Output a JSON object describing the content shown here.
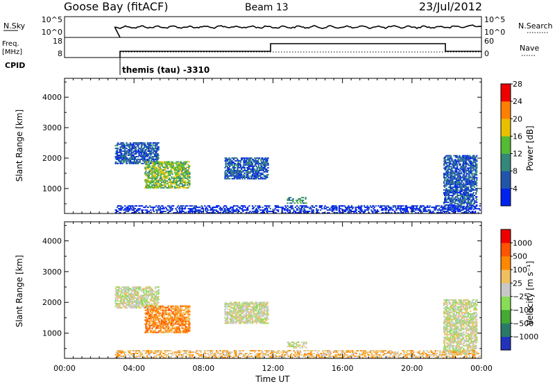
{
  "header": {
    "station": "Goose Bay (fitACF)",
    "beam": "Beam 13",
    "date": "23/Jul/2012"
  },
  "top_panels": {
    "nsky_label": "N.Sky",
    "nsky_ticks": [
      "10^5",
      "10^0"
    ],
    "nsearch_label": "N.Search",
    "nsearch_ticks": [
      "10^5",
      "10^0"
    ],
    "freq_label_line1": "Freq.",
    "freq_label_line2": "[MHz]",
    "freq_ticks": [
      "18",
      "8"
    ],
    "nave_label": "Nave",
    "nave_ticks": [
      "60",
      "0"
    ],
    "cpid_label": "CPID",
    "cpid_text": "themis (tau) -3310"
  },
  "chart_data": [
    {
      "type": "heatmap",
      "name": "power-panel",
      "ylabel": "Slant Range [km]",
      "yticks": [
        1000,
        2000,
        3000,
        4000
      ],
      "ylim": [
        180,
        4620
      ],
      "x_ticks": [
        "00:00",
        "04:00",
        "08:00",
        "12:00",
        "16:00",
        "20:00",
        "00:00"
      ],
      "xlim_hours": [
        0,
        24
      ],
      "colorbar": {
        "label": "Power [dB]",
        "ticks": [
          "4",
          "8",
          "12",
          "16",
          "20",
          "24",
          "28"
        ],
        "colors": [
          "#0022ee",
          "#2255aa",
          "#33887a",
          "#55bb33",
          "#e8c000",
          "#ff8000",
          "#ee0000"
        ]
      },
      "echo_regions": [
        {
          "t0": 2.9,
          "t1": 5.4,
          "r0": 1800,
          "r1": 2500,
          "level": 1
        },
        {
          "t0": 4.6,
          "t1": 7.2,
          "r0": 1000,
          "r1": 1900,
          "level": 3
        },
        {
          "t0": 9.2,
          "t1": 11.7,
          "r0": 1300,
          "r1": 2000,
          "level": 1
        },
        {
          "t0": 12.8,
          "t1": 13.9,
          "r0": 500,
          "r1": 700,
          "level": 2
        },
        {
          "t0": 21.8,
          "t1": 23.7,
          "r0": 300,
          "r1": 2100,
          "level": 1
        },
        {
          "t0": 2.9,
          "t1": 23.9,
          "r0": 180,
          "r1": 420,
          "level": 0
        }
      ]
    },
    {
      "type": "heatmap",
      "name": "velocity-panel",
      "ylabel": "Slant Range [km]",
      "xlabel": "Time UT",
      "yticks": [
        1000,
        2000,
        3000,
        4000
      ],
      "ylim": [
        180,
        4620
      ],
      "x_ticks": [
        "00:00",
        "04:00",
        "08:00",
        "12:00",
        "16:00",
        "20:00",
        "00:00"
      ],
      "xlim_hours": [
        0,
        24
      ],
      "colorbar": {
        "label": "Velocity [m s⁻¹]",
        "ticks": [
          "1000",
          "500",
          "100",
          "25",
          "−25",
          "−100",
          "−500",
          "−1000"
        ],
        "colors": [
          "#2233bb",
          "#2a7a6a",
          "#44aa33",
          "#88dd55",
          "#c8c8c8",
          "#f0c060",
          "#ff8800",
          "#ff5500",
          "#ee0000"
        ]
      },
      "echo_regions": [
        {
          "t0": 2.9,
          "t1": 5.4,
          "r0": 1800,
          "r1": 2500,
          "level": 4
        },
        {
          "t0": 4.6,
          "t1": 7.2,
          "r0": 1000,
          "r1": 1900,
          "level": 6
        },
        {
          "t0": 9.2,
          "t1": 11.7,
          "r0": 1300,
          "r1": 2000,
          "level": 4
        },
        {
          "t0": 12.8,
          "t1": 13.9,
          "r0": 500,
          "r1": 700,
          "level": 4
        },
        {
          "t0": 21.8,
          "t1": 23.7,
          "r0": 300,
          "r1": 2100,
          "level": 4
        },
        {
          "t0": 2.9,
          "t1": 23.9,
          "r0": 180,
          "r1": 420,
          "level": 5
        }
      ]
    }
  ]
}
